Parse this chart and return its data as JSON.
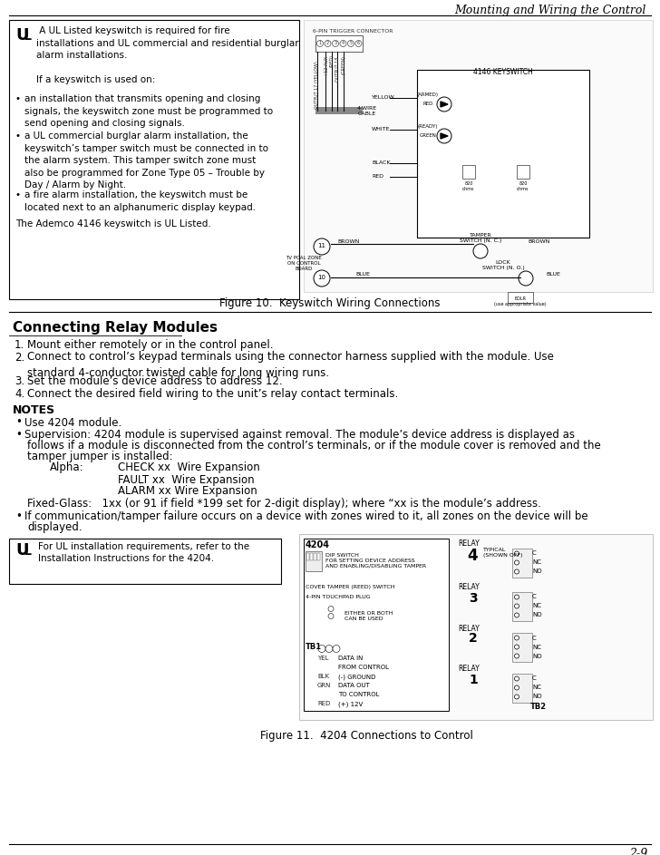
{
  "page_title": "Mounting and Wiring the Control",
  "page_number": "2-9",
  "bg": "#ffffff",
  "s1_ul1": "UL",
  "s1_body": " A UL Listed keyswitch is required for fire\ninstallations and UL commercial and residential burglar\nalarm installations.\n\nIf a keyswitch is used on:",
  "s1_b1": "an installation that transmits opening and closing\nsignals, the keyswitch zone must be programmed to\nsend opening and closing signals.",
  "s1_b2": "a UL commercial burglar alarm installation, the\nkeyswitch’s tamper switch must be connected in to\nthe alarm system. This tamper switch zone must\nalso be programmed for Zone Type 05 – Trouble by\nDay / Alarm by Night.",
  "s1_b3": "a fire alarm installation, the keyswitch must be\nlocated next to an alphanumeric display keypad.",
  "s1_last": "The Ademco 4146 keyswitch is UL Listed.",
  "fig1_cap": "Figure 10.  Keyswitch Wiring Connections",
  "s2_head": "Connecting Relay Modules",
  "s2_i1": "Mount either remotely or in the control panel.",
  "s2_i2": "Connect to control’s keypad terminals using the connector harness supplied with the module. Use\nstandard 4-conductor twisted cable for long wiring runs.",
  "s2_i3": "Set the module’s device address to address 12.",
  "s2_i4": "Connect the desired field wiring to the unit’s relay contact terminals.",
  "notes": "NOTES",
  "n1": "Use 4204 module.",
  "n2a": "Supervision: 4204 module is supervised against removal. The module’s device address is displayed as",
  "n2b": "follows if a module is disconnected from the control’s terminals, or if the module cover is removed and the",
  "n2c": "tamper jumper is installed:",
  "alpha": "Alpha:",
  "check": "CHECK xx  Wire Expansion",
  "fault": "FAULT xx  Wire Expansion",
  "alarm": "ALARM xx Wire Expansion",
  "fixed": "Fixed-Glass:   1xx (or 91 if field *199 set for 2-digit display); where “xx is the module’s address.",
  "n3a": "If communication/tamper failure occurs on a device with zones wired to it, all zones on the device will be",
  "n3b": "displayed.",
  "ul2a": "For UL installation requirements, refer to the",
  "ul2b": "Installation Instructions for the 4204.",
  "fig2_cap": "Figure 11.  4204 Connections to Control"
}
